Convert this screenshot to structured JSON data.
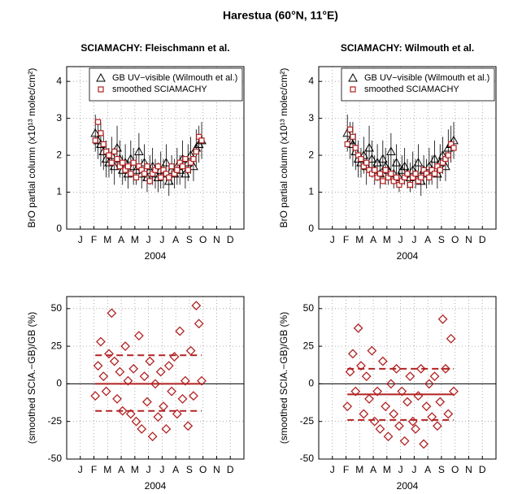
{
  "title": "Harestua (60°N, 11°E)",
  "chart_data": [
    {
      "type": "scatter",
      "title": "SCIAMACHY: Fleischmann et al.",
      "xlabel": "2004",
      "ylabel": "BrO partial column (x10¹³ molec/cm²)",
      "xlim": [
        0,
        13
      ],
      "xticks": [
        {
          "value": 1,
          "label": "J"
        },
        {
          "value": 2,
          "label": "F"
        },
        {
          "value": 3,
          "label": "M"
        },
        {
          "value": 4,
          "label": "A"
        },
        {
          "value": 5,
          "label": "M"
        },
        {
          "value": 6,
          "label": "J"
        },
        {
          "value": 7,
          "label": "J"
        },
        {
          "value": 8,
          "label": "A"
        },
        {
          "value": 9,
          "label": "S"
        },
        {
          "value": 10,
          "label": "O"
        },
        {
          "value": 11,
          "label": "N"
        },
        {
          "value": 12,
          "label": "D"
        }
      ],
      "ylim": [
        0,
        4.4
      ],
      "yticks": [
        0,
        1,
        2,
        3,
        4
      ],
      "grid": true,
      "legend": "upper right",
      "x": [
        2.1,
        2.3,
        2.5,
        2.7,
        2.9,
        3.1,
        3.3,
        3.5,
        3.7,
        3.9,
        4.1,
        4.3,
        4.5,
        4.7,
        4.9,
        5.1,
        5.3,
        5.5,
        5.7,
        5.9,
        6.1,
        6.3,
        6.5,
        6.7,
        6.9,
        7.1,
        7.3,
        7.5,
        7.7,
        7.9,
        8.1,
        8.3,
        8.5,
        8.7,
        8.9,
        9.1,
        9.3,
        9.5,
        9.7,
        9.9
      ],
      "series": [
        {
          "name": "GB UV−visible (Wilmouth et al.)",
          "color": "#000000",
          "marker": "triangle",
          "values": [
            2.6,
            2.4,
            2.3,
            2.1,
            1.9,
            1.8,
            2.0,
            1.7,
            2.2,
            1.9,
            1.6,
            1.8,
            1.5,
            1.9,
            1.7,
            1.6,
            2.1,
            1.5,
            1.8,
            1.4,
            1.6,
            1.7,
            1.5,
            1.4,
            1.6,
            1.5,
            1.8,
            1.3,
            1.6,
            1.5,
            1.7,
            1.6,
            1.9,
            1.5,
            1.8,
            2.0,
            1.7,
            2.2,
            2.3,
            2.4
          ],
          "errors": [
            0.5,
            0.5,
            0.6,
            0.5,
            0.5,
            0.4,
            0.5,
            0.5,
            0.6,
            0.5,
            0.4,
            0.5,
            0.4,
            0.5,
            0.5,
            0.4,
            0.5,
            0.4,
            0.5,
            0.4,
            0.4,
            0.5,
            0.4,
            0.4,
            0.5,
            0.4,
            0.5,
            0.4,
            0.4,
            0.4,
            0.5,
            0.4,
            0.5,
            0.4,
            0.5,
            0.5,
            0.4,
            0.5,
            0.5,
            0.5
          ]
        },
        {
          "name": "smoothed SCIAMACHY",
          "color": "#b22222",
          "marker": "square",
          "values": [
            2.4,
            2.9,
            2.6,
            2.3,
            2.1,
            2.0,
            1.8,
            2.1,
            1.9,
            1.7,
            1.8,
            1.6,
            1.7,
            1.5,
            1.8,
            1.4,
            1.7,
            1.6,
            1.5,
            1.7,
            1.3,
            1.5,
            1.6,
            1.7,
            1.4,
            1.6,
            1.5,
            1.4,
            1.7,
            1.5,
            1.6,
            1.8,
            1.7,
            1.9,
            1.6,
            1.8,
            1.9,
            2.1,
            2.5,
            2.4
          ]
        }
      ]
    },
    {
      "type": "scatter",
      "title": "SCIAMACHY: Wilmouth et al.",
      "xlabel": "2004",
      "ylabel": "BrO partial column (x10¹³ molec/cm²)",
      "xlim": [
        0,
        13
      ],
      "xticks": [
        {
          "value": 1,
          "label": "J"
        },
        {
          "value": 2,
          "label": "F"
        },
        {
          "value": 3,
          "label": "M"
        },
        {
          "value": 4,
          "label": "A"
        },
        {
          "value": 5,
          "label": "M"
        },
        {
          "value": 6,
          "label": "J"
        },
        {
          "value": 7,
          "label": "J"
        },
        {
          "value": 8,
          "label": "A"
        },
        {
          "value": 9,
          "label": "S"
        },
        {
          "value": 10,
          "label": "O"
        },
        {
          "value": 11,
          "label": "N"
        },
        {
          "value": 12,
          "label": "D"
        }
      ],
      "ylim": [
        0,
        4.4
      ],
      "yticks": [
        0,
        1,
        2,
        3,
        4
      ],
      "grid": true,
      "legend": "upper right",
      "x": [
        2.1,
        2.3,
        2.5,
        2.7,
        2.9,
        3.1,
        3.3,
        3.5,
        3.7,
        3.9,
        4.1,
        4.3,
        4.5,
        4.7,
        4.9,
        5.1,
        5.3,
        5.5,
        5.7,
        5.9,
        6.1,
        6.3,
        6.5,
        6.7,
        6.9,
        7.1,
        7.3,
        7.5,
        7.7,
        7.9,
        8.1,
        8.3,
        8.5,
        8.7,
        8.9,
        9.1,
        9.3,
        9.5,
        9.7,
        9.9
      ],
      "series": [
        {
          "name": "GB UV−visible (Wilmouth et al.)",
          "color": "#000000",
          "marker": "triangle",
          "values": [
            2.6,
            2.4,
            2.3,
            2.1,
            1.9,
            1.8,
            2.0,
            1.7,
            2.2,
            1.9,
            1.6,
            1.8,
            1.5,
            1.9,
            1.7,
            1.6,
            2.1,
            1.5,
            1.8,
            1.4,
            1.6,
            1.7,
            1.5,
            1.4,
            1.6,
            1.5,
            1.8,
            1.3,
            1.6,
            1.5,
            1.7,
            1.6,
            1.9,
            1.5,
            1.8,
            2.0,
            1.7,
            2.2,
            2.3,
            2.4
          ],
          "errors": [
            0.5,
            0.5,
            0.6,
            0.5,
            0.5,
            0.4,
            0.5,
            0.5,
            0.6,
            0.5,
            0.4,
            0.5,
            0.4,
            0.5,
            0.5,
            0.4,
            0.5,
            0.4,
            0.5,
            0.4,
            0.4,
            0.5,
            0.4,
            0.4,
            0.5,
            0.4,
            0.5,
            0.4,
            0.4,
            0.4,
            0.5,
            0.4,
            0.5,
            0.4,
            0.5,
            0.5,
            0.4,
            0.5,
            0.5,
            0.5
          ]
        },
        {
          "name": "smoothed SCIAMACHY",
          "color": "#b22222",
          "marker": "square",
          "values": [
            2.3,
            2.7,
            2.5,
            2.2,
            2.0,
            1.9,
            1.7,
            1.8,
            1.6,
            1.5,
            1.6,
            1.4,
            1.5,
            1.3,
            1.6,
            1.4,
            1.5,
            1.3,
            1.4,
            1.2,
            1.3,
            1.4,
            1.5,
            1.2,
            1.4,
            1.5,
            1.3,
            1.4,
            1.6,
            1.5,
            1.4,
            1.6,
            1.5,
            1.7,
            1.6,
            1.8,
            1.9,
            2.0,
            2.3,
            2.2
          ]
        }
      ]
    },
    {
      "type": "scatter",
      "xlabel": "2004",
      "ylabel": "(smoothed SCIA.−GB)/GB (%)",
      "xlim": [
        0,
        13
      ],
      "xticks": [
        {
          "value": 1,
          "label": "J"
        },
        {
          "value": 2,
          "label": "F"
        },
        {
          "value": 3,
          "label": "M"
        },
        {
          "value": 4,
          "label": "A"
        },
        {
          "value": 5,
          "label": "M"
        },
        {
          "value": 6,
          "label": "J"
        },
        {
          "value": 7,
          "label": "J"
        },
        {
          "value": 8,
          "label": "A"
        },
        {
          "value": 9,
          "label": "S"
        },
        {
          "value": 10,
          "label": "O"
        },
        {
          "value": 11,
          "label": "N"
        },
        {
          "value": 12,
          "label": "D"
        }
      ],
      "ylim": [
        -50,
        58
      ],
      "yticks": [
        -50,
        -25,
        0,
        25,
        50
      ],
      "grid": true,
      "x": [
        2.1,
        2.3,
        2.5,
        2.7,
        2.9,
        3.1,
        3.3,
        3.5,
        3.7,
        3.9,
        4.1,
        4.3,
        4.5,
        4.7,
        4.9,
        5.1,
        5.3,
        5.5,
        5.7,
        5.9,
        6.1,
        6.3,
        6.5,
        6.7,
        6.9,
        7.1,
        7.3,
        7.5,
        7.7,
        7.9,
        8.1,
        8.3,
        8.5,
        8.7,
        8.9,
        9.1,
        9.3,
        9.5,
        9.7,
        9.9
      ],
      "series": [
        {
          "color": "#b22222",
          "marker": "diamond",
          "values": [
            -8,
            12,
            28,
            5,
            -5,
            20,
            47,
            15,
            -10,
            8,
            -18,
            25,
            2,
            -20,
            10,
            -25,
            32,
            -30,
            5,
            -12,
            15,
            -35,
            0,
            -22,
            8,
            -15,
            -30,
            12,
            -5,
            18,
            -20,
            35,
            -10,
            2,
            -28,
            22,
            -8,
            52,
            40,
            2
          ]
        }
      ],
      "reference_lines": [
        {
          "value": 0,
          "style": "solid",
          "color": "#b22222"
        },
        {
          "value": 19,
          "style": "dashed",
          "color": "#b22222"
        },
        {
          "value": -18,
          "style": "dashed",
          "color": "#b22222"
        }
      ],
      "zero_line": {
        "value": 0,
        "color": "#000000"
      }
    },
    {
      "type": "scatter",
      "xlabel": "2004",
      "ylabel": "(smoothed SCIA.−GB)/GB (%)",
      "xlim": [
        0,
        13
      ],
      "xticks": [
        {
          "value": 1,
          "label": "J"
        },
        {
          "value": 2,
          "label": "F"
        },
        {
          "value": 3,
          "label": "M"
        },
        {
          "value": 4,
          "label": "A"
        },
        {
          "value": 5,
          "label": "M"
        },
        {
          "value": 6,
          "label": "J"
        },
        {
          "value": 7,
          "label": "J"
        },
        {
          "value": 8,
          "label": "A"
        },
        {
          "value": 9,
          "label": "S"
        },
        {
          "value": 10,
          "label": "O"
        },
        {
          "value": 11,
          "label": "N"
        },
        {
          "value": 12,
          "label": "D"
        }
      ],
      "ylim": [
        -50,
        58
      ],
      "yticks": [
        -50,
        -25,
        0,
        25,
        50
      ],
      "grid": true,
      "x": [
        2.1,
        2.3,
        2.5,
        2.7,
        2.9,
        3.1,
        3.3,
        3.5,
        3.7,
        3.9,
        4.1,
        4.3,
        4.5,
        4.7,
        4.9,
        5.1,
        5.3,
        5.5,
        5.7,
        5.9,
        6.1,
        6.3,
        6.5,
        6.7,
        6.9,
        7.1,
        7.3,
        7.5,
        7.7,
        7.9,
        8.1,
        8.3,
        8.5,
        8.7,
        8.9,
        9.1,
        9.3,
        9.5,
        9.7,
        9.9
      ],
      "series": [
        {
          "color": "#b22222",
          "marker": "diamond",
          "values": [
            -15,
            8,
            20,
            -5,
            37,
            12,
            -20,
            5,
            -10,
            22,
            -25,
            -5,
            -30,
            15,
            -15,
            -35,
            0,
            -20,
            10,
            -28,
            -5,
            -38,
            -12,
            5,
            -25,
            -30,
            -8,
            10,
            -40,
            -15,
            0,
            -22,
            5,
            -28,
            -12,
            43,
            10,
            -20,
            30,
            -5
          ]
        }
      ],
      "reference_lines": [
        {
          "value": -7,
          "style": "solid",
          "color": "#b22222"
        },
        {
          "value": 10,
          "style": "dashed",
          "color": "#b22222"
        },
        {
          "value": -24,
          "style": "dashed",
          "color": "#b22222"
        }
      ],
      "zero_line": {
        "value": 0,
        "color": "#000000"
      }
    }
  ]
}
